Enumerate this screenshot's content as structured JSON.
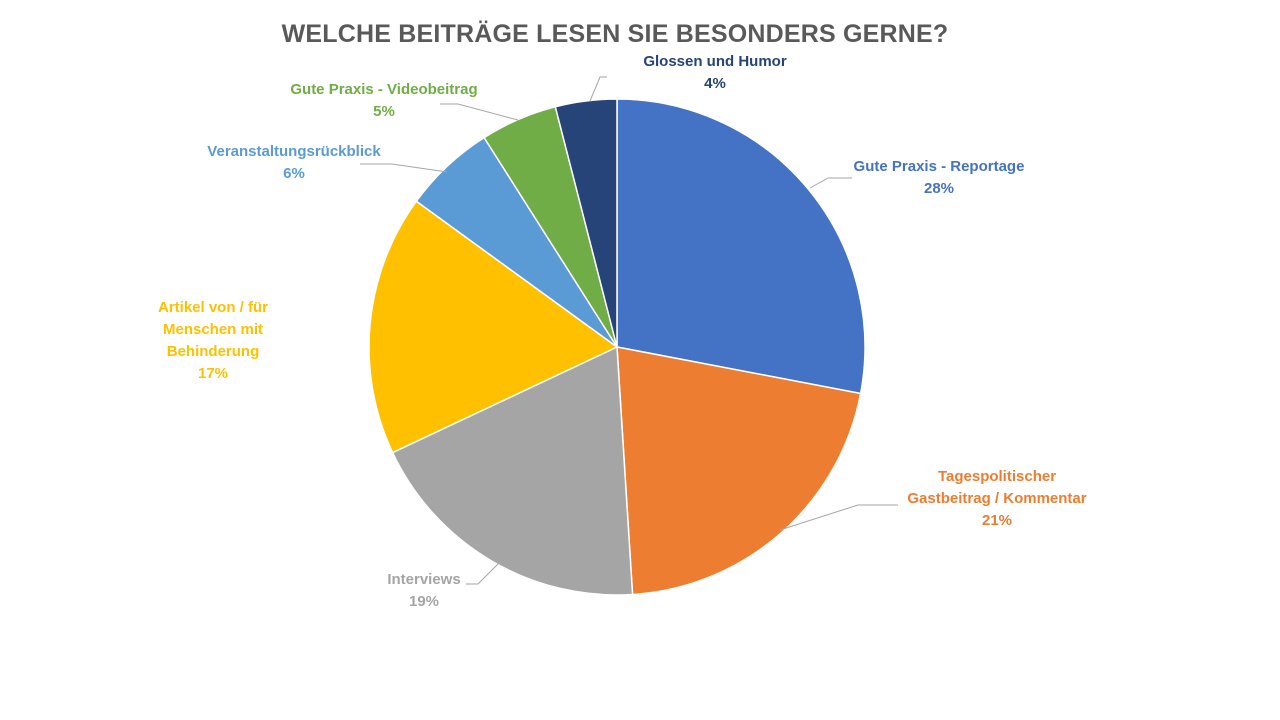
{
  "chart_data": {
    "type": "pie",
    "title": "WELCHE BEITRÄGE LESEN SIE BESONDERS GERNE?",
    "series": [
      {
        "name": "Gute Praxis - Reportage",
        "value": 28,
        "label": "28%",
        "label_lines": [
          "Gute Praxis - Reportage"
        ],
        "color": "#4472c4"
      },
      {
        "name": "Tagespolitischer Gastbeitrag / Kommentar",
        "value": 21,
        "label": "21%",
        "label_lines": [
          "Tagespolitischer",
          "Gastbeitrag / Kommentar"
        ],
        "color": "#ed7d31"
      },
      {
        "name": "Interviews",
        "value": 19,
        "label": "19%",
        "label_lines": [
          "Interviews"
        ],
        "color": "#a5a5a5"
      },
      {
        "name": "Artikel von / für Menschen mit Behinderung",
        "value": 17,
        "label": "17%",
        "label_lines": [
          "Artikel von / für",
          "Menschen mit",
          "Behinderung"
        ],
        "color": "#ffc000"
      },
      {
        "name": "Veranstaltungsrückblick",
        "value": 6,
        "label": "6%",
        "label_lines": [
          "Veranstaltungsrückblick"
        ],
        "color": "#5b9bd5"
      },
      {
        "name": "Gute Praxis - Videobeitrag",
        "value": 5,
        "label": "5%",
        "label_lines": [
          "Gute Praxis - Videobeitrag"
        ],
        "color": "#70ad47"
      },
      {
        "name": "Glossen und Humor",
        "value": 4,
        "label": "4%",
        "label_lines": [
          "Glossen und Humor"
        ],
        "color": "#264478"
      }
    ],
    "legend": "none",
    "start": "top",
    "direction": "clockwise"
  }
}
